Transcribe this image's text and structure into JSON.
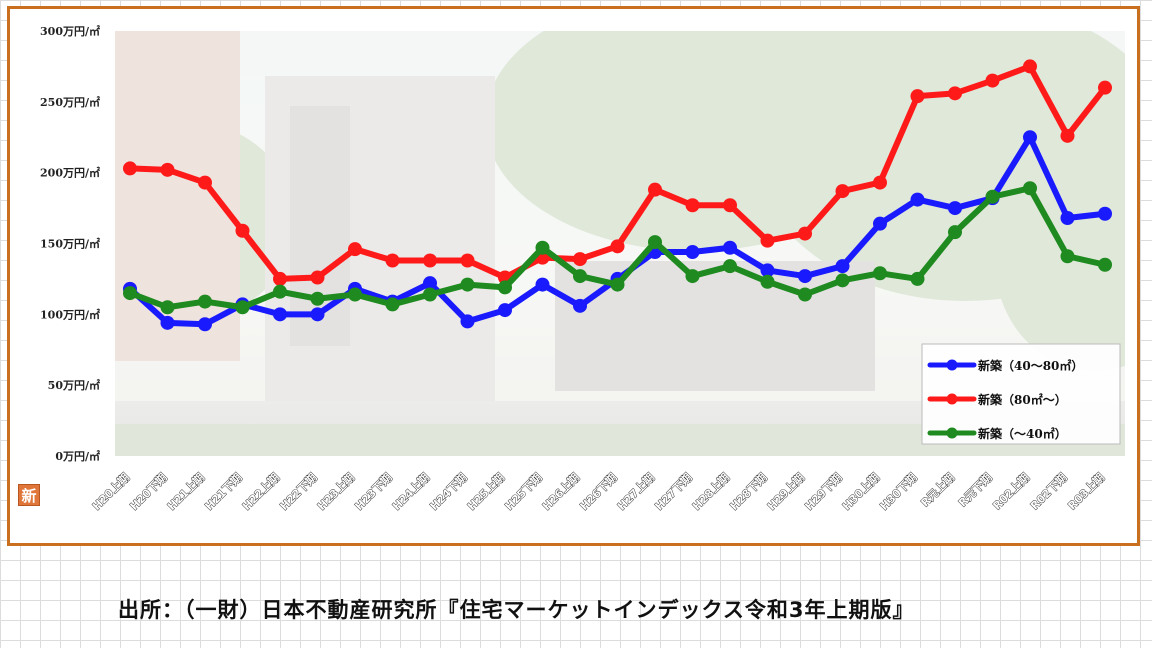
{
  "badge": {
    "label": "新",
    "color": "#e0763a"
  },
  "source": {
    "text": "出所：（一財）日本不動産研究所『住宅マーケットインデックス令和3年上期版』"
  },
  "chart_data": {
    "type": "line",
    "title": "",
    "xlabel": "",
    "ylabel": "",
    "ylim": [
      0,
      300
    ],
    "y_ticks": [
      {
        "value": 0,
        "label": "0万円/㎡"
      },
      {
        "value": 50,
        "label": "50万円/㎡"
      },
      {
        "value": 100,
        "label": "100万円/㎡"
      },
      {
        "value": 150,
        "label": "150万円/㎡"
      },
      {
        "value": 200,
        "label": "200万円/㎡"
      },
      {
        "value": 250,
        "label": "250万円/㎡"
      },
      {
        "value": 300,
        "label": "300万円/㎡"
      }
    ],
    "categories": [
      "H20上期",
      "H20下期",
      "H21上期",
      "H21下期",
      "H22上期",
      "H22下期",
      "H23上期",
      "H23下期",
      "H24上期",
      "H24下期",
      "H25上期",
      "H25下期",
      "H26上期",
      "H26下期",
      "H27上期",
      "H27下期",
      "H28上期",
      "H28下期",
      "H29上期",
      "H29下期",
      "H30上期",
      "H30下期",
      "R元上期",
      "R元下期",
      "R02上期",
      "R02下期",
      "R03上期"
    ],
    "grid": false,
    "legend_position": "bottom-right",
    "series": [
      {
        "name": "新築（40～80㎡）",
        "color": "#1a1aff",
        "values": [
          118,
          94,
          93,
          107,
          100,
          100,
          118,
          109,
          122,
          95,
          103,
          121,
          106,
          125,
          144,
          144,
          147,
          131,
          127,
          134,
          164,
          181,
          175,
          182,
          225,
          168,
          171
        ]
      },
      {
        "name": "新築（80㎡～）",
        "color": "#ff1a1a",
        "values": [
          203,
          202,
          193,
          159,
          125,
          126,
          146,
          138,
          138,
          138,
          126,
          140,
          139,
          148,
          188,
          177,
          177,
          152,
          157,
          187,
          193,
          254,
          256,
          265,
          275,
          226,
          260
        ]
      },
      {
        "name": "新築（～40㎡）",
        "color": "#1f8a1f",
        "values": [
          115,
          105,
          109,
          105,
          116,
          111,
          114,
          107,
          114,
          121,
          119,
          147,
          127,
          121,
          151,
          127,
          134,
          123,
          114,
          124,
          129,
          125,
          158,
          183,
          189,
          141,
          135
        ]
      }
    ]
  }
}
